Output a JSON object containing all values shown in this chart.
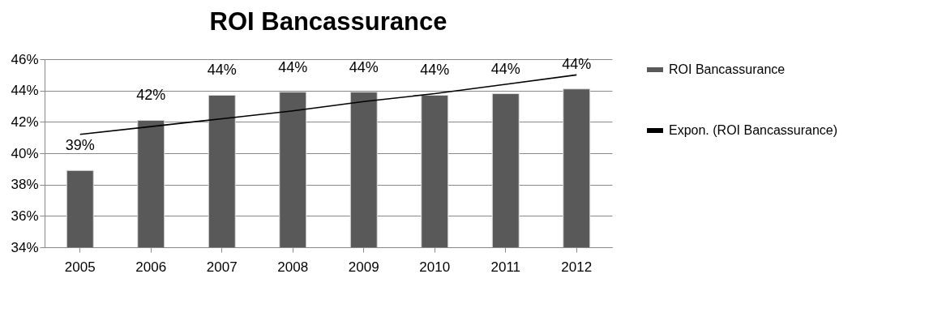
{
  "chart_data": {
    "type": "bar",
    "title": "ROI Bancassurance",
    "categories": [
      "2005",
      "2006",
      "2007",
      "2008",
      "2009",
      "2010",
      "2011",
      "2012"
    ],
    "series": [
      {
        "name": "ROI Bancassurance",
        "color": "#595959",
        "values": [
          38.9,
          42.1,
          43.7,
          43.9,
          43.9,
          43.7,
          43.8,
          44.1
        ],
        "value_labels": [
          "39%",
          "42%",
          "44%",
          "44%",
          "44%",
          "44%",
          "44%",
          "44%"
        ]
      },
      {
        "name": "Expon. (ROI Bancassurance)",
        "type": "line",
        "color": "#000000",
        "values": [
          41.2,
          41.7,
          42.2,
          42.7,
          43.3,
          43.8,
          44.4,
          45.0
        ]
      }
    ],
    "ylim": [
      34,
      46
    ],
    "yticks": [
      {
        "value": 34,
        "label": "34%"
      },
      {
        "value": 36,
        "label": "36%"
      },
      {
        "value": 38,
        "label": "38%"
      },
      {
        "value": 40,
        "label": "40%"
      },
      {
        "value": 42,
        "label": "42%"
      },
      {
        "value": 44,
        "label": "44%"
      },
      {
        "value": 46,
        "label": "46%"
      }
    ],
    "grid": "y",
    "legend": "right"
  }
}
